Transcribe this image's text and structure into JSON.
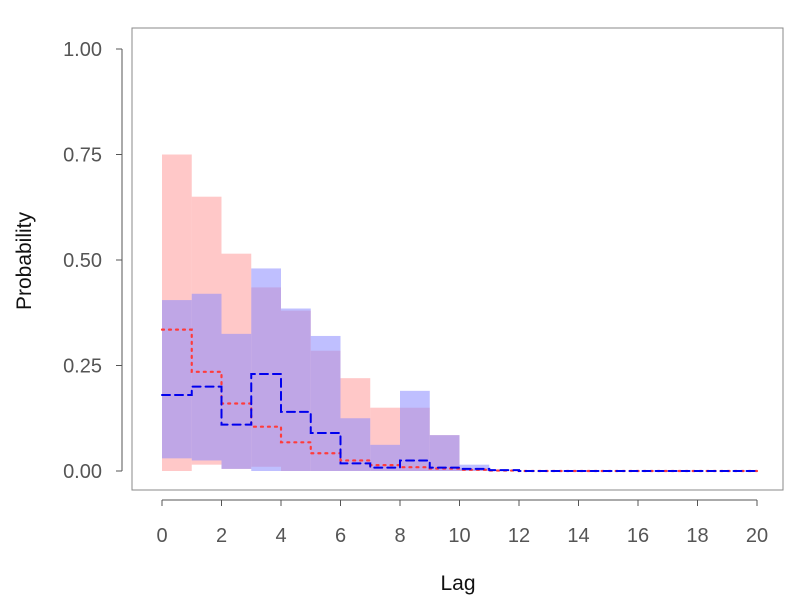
{
  "chart_data": {
    "type": "area",
    "title": "",
    "xlabel": "Lag",
    "ylabel": "Probability",
    "xlim": [
      0,
      20
    ],
    "ylim": [
      0,
      1
    ],
    "x_ticks": [
      "0",
      "2",
      "4",
      "6",
      "8",
      "10",
      "12",
      "14",
      "16",
      "18",
      "20"
    ],
    "y_ticks": [
      "0.00",
      "0.25",
      "0.50",
      "0.75",
      "1.00"
    ],
    "grid": false,
    "legend": "none",
    "series": [
      {
        "style": "dotted",
        "color": "#ff3b3b",
        "band_color": "#ff9a9a",
        "x": [
          0,
          1,
          2,
          3,
          4,
          5,
          6,
          7,
          8,
          9,
          10,
          11,
          12,
          13,
          14,
          15,
          16,
          17,
          18,
          19,
          20
        ],
        "median": [
          0.335,
          0.235,
          0.16,
          0.105,
          0.068,
          0.042,
          0.025,
          0.014,
          0.009,
          0.006,
          0.003,
          0.001,
          0,
          0,
          0,
          0,
          0,
          0,
          0,
          0,
          0
        ],
        "lower": [
          0.0,
          0.015,
          0.005,
          0.01,
          0.0,
          0.0,
          0.0,
          0.0,
          0.0,
          0.0,
          0.0,
          0,
          0,
          0,
          0,
          0,
          0,
          0,
          0,
          0,
          0
        ],
        "upper": [
          0.75,
          0.65,
          0.515,
          0.435,
          0.38,
          0.285,
          0.22,
          0.15,
          0.15,
          0.085,
          0.005,
          0,
          0,
          0,
          0,
          0,
          0,
          0,
          0,
          0,
          0
        ]
      },
      {
        "style": "dashed",
        "color": "#0000ee",
        "band_color": "#8b8bff",
        "x": [
          0,
          1,
          2,
          3,
          4,
          5,
          6,
          7,
          8,
          9,
          10,
          11,
          12,
          13,
          14,
          15,
          16,
          17,
          18,
          19,
          20
        ],
        "median": [
          0.18,
          0.2,
          0.11,
          0.23,
          0.14,
          0.09,
          0.018,
          0.008,
          0.025,
          0.008,
          0.005,
          0.002,
          0,
          0,
          0,
          0,
          0,
          0,
          0,
          0,
          0
        ],
        "lower": [
          0.03,
          0.025,
          0.005,
          0.0,
          0.0,
          0.0,
          0.0,
          0.0,
          0.0,
          0.0,
          0.0,
          0,
          0,
          0,
          0,
          0,
          0,
          0,
          0,
          0,
          0
        ],
        "upper": [
          0.405,
          0.42,
          0.325,
          0.48,
          0.385,
          0.32,
          0.125,
          0.062,
          0.19,
          0.085,
          0.015,
          0,
          0,
          0,
          0,
          0,
          0,
          0,
          0,
          0,
          0
        ]
      }
    ]
  }
}
